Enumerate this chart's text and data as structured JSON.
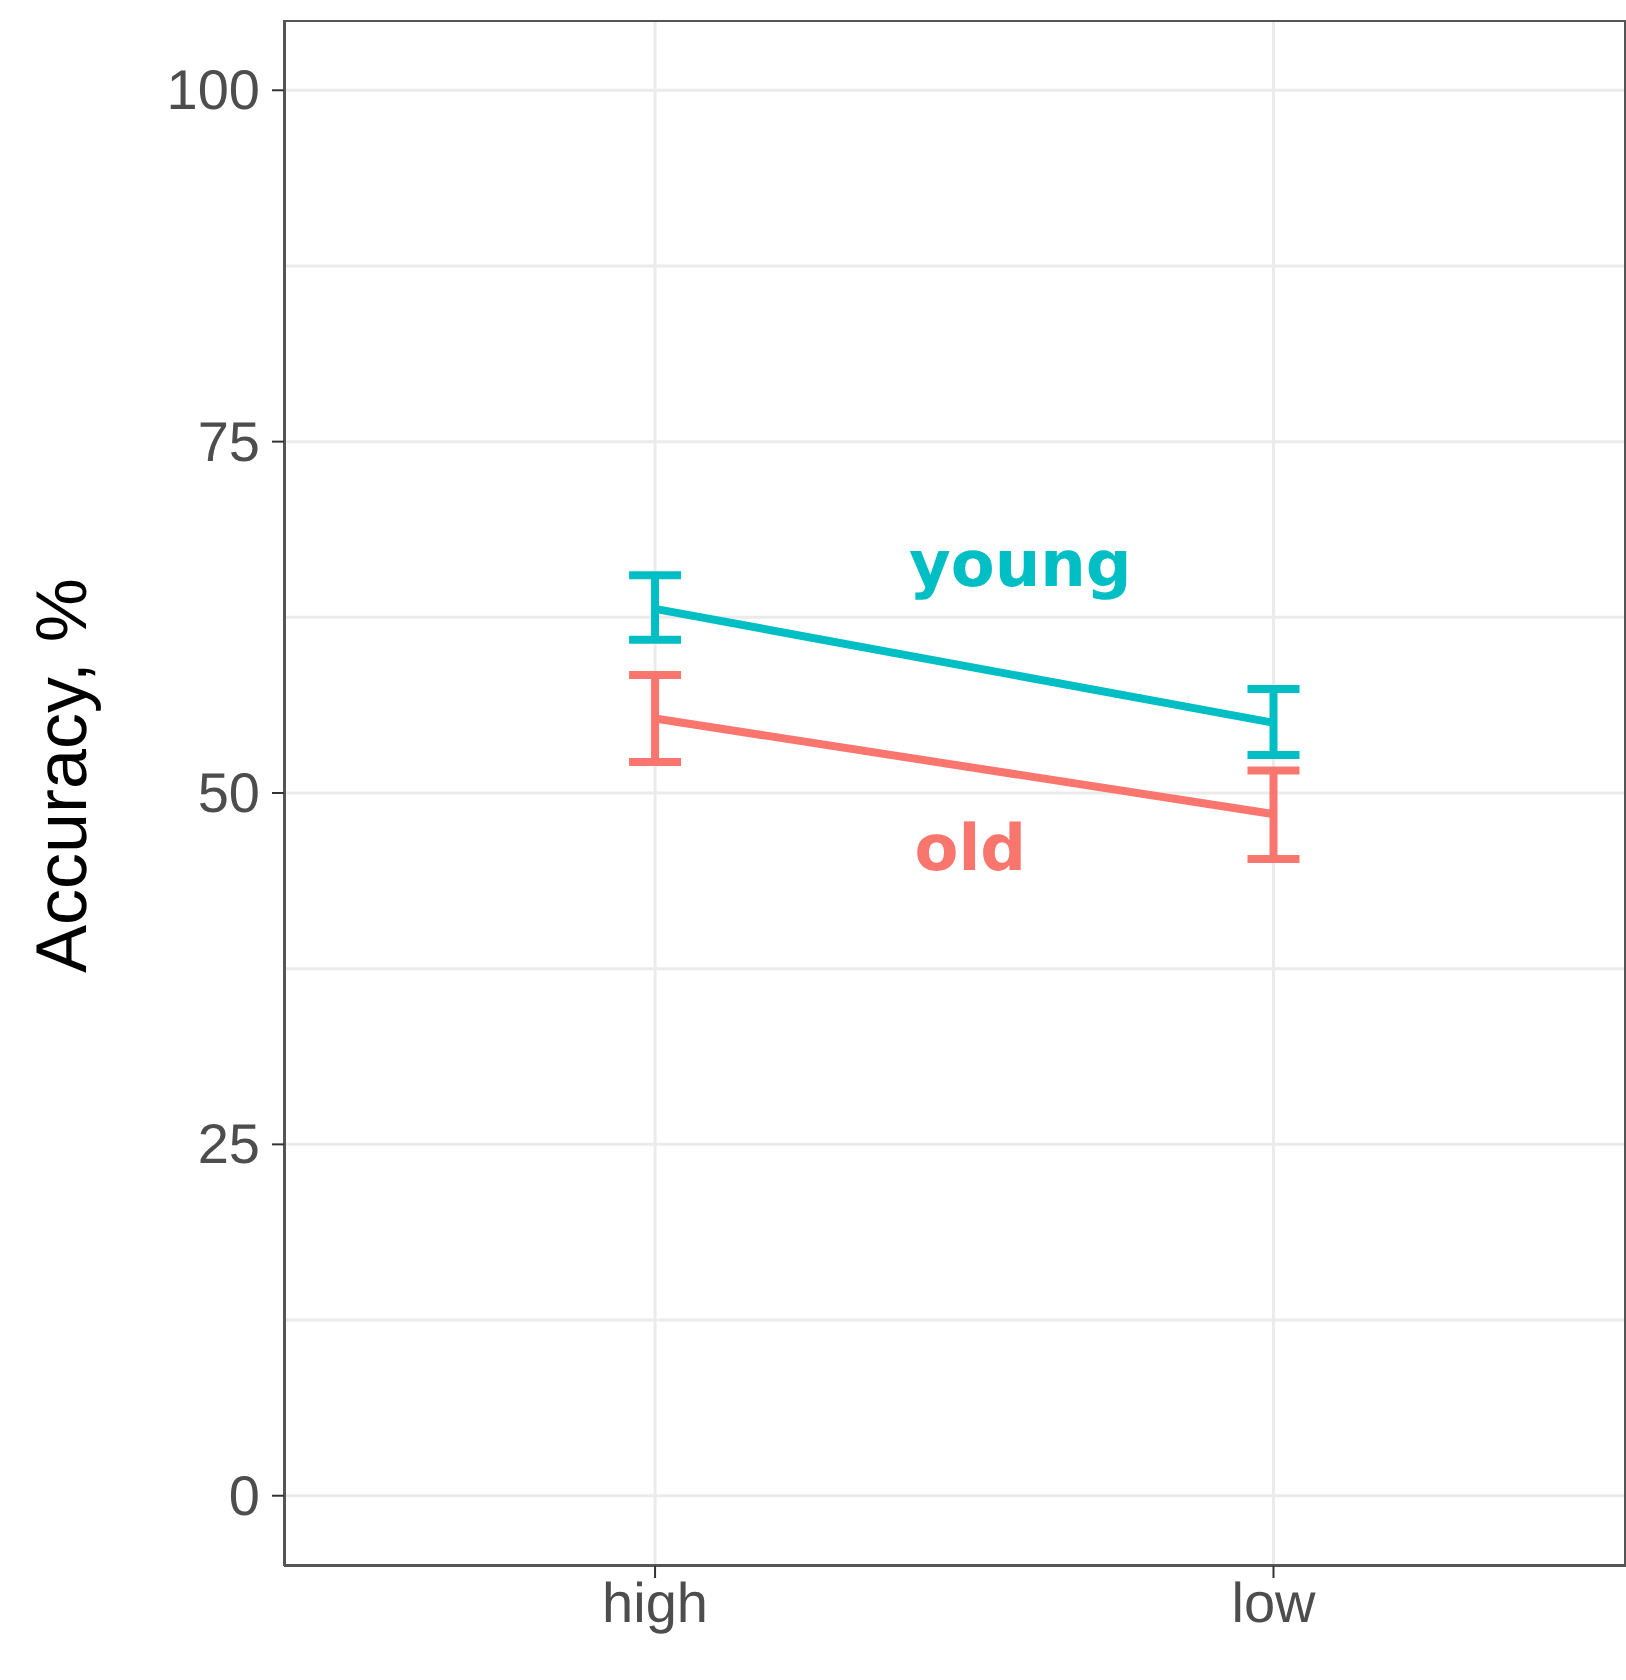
{
  "chart_data": {
    "type": "line",
    "ylabel": "Accuracy, %",
    "categories": [
      "high",
      "low"
    ],
    "series": [
      {
        "name": "young",
        "color": "#00bfc4",
        "values": [
          63.1,
          55.0
        ],
        "errors": [
          [
            60.9,
            65.5
          ],
          [
            52.7,
            57.4
          ]
        ]
      },
      {
        "name": "old",
        "color": "#f8766d",
        "values": [
          55.3,
          48.5
        ],
        "errors": [
          [
            52.2,
            58.4
          ],
          [
            45.3,
            51.6
          ]
        ]
      }
    ],
    "ylim": [
      -5,
      105
    ],
    "yticks": [
      0,
      {
        "value": 12.5,
        "label": null
      },
      25,
      {
        "value": 37.5,
        "label": null
      },
      50,
      {
        "value": 62.5,
        "label": null
      },
      75,
      {
        "value": 87.5,
        "label": null
      },
      100
    ],
    "grid": true,
    "marker": "none",
    "line_style": "solid"
  }
}
